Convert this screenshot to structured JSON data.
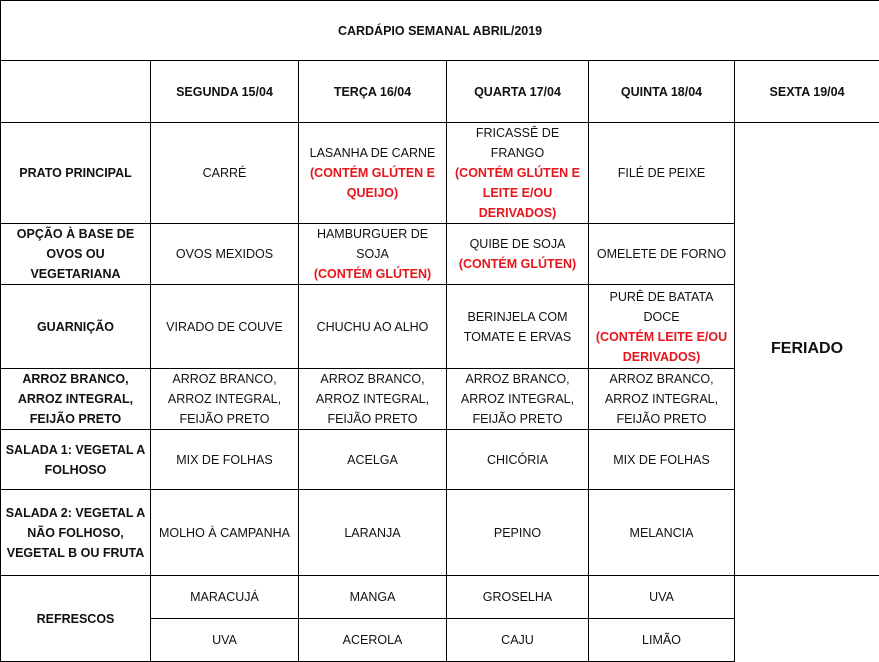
{
  "title": "CARDÁPIO SEMANAL ABRIL/2019",
  "days": [
    "SEGUNDA   15/04",
    "TERÇA 16/04",
    "QUARTA 17/04",
    "QUINTA 18/04",
    "SEXTA 19/04"
  ],
  "holiday": "FERIADO",
  "note_color": "#e8141b",
  "rows": [
    {
      "label": "PRATO PRINCIPAL",
      "cells": [
        {
          "text": "CARRÉ",
          "note": ""
        },
        {
          "text": "LASANHA DE CARNE",
          "note": "(CONTÉM GLÚTEN E QUEIJO)"
        },
        {
          "text": "FRICASSÊ DE FRANGO",
          "note": "(CONTÉM GLÚTEN E LEITE E/OU DERIVADOS)"
        },
        {
          "text": "FILÉ DE PEIXE",
          "note": ""
        }
      ]
    },
    {
      "label": "OPÇÃO À BASE DE OVOS OU VEGETARIANA",
      "cells": [
        {
          "text": "OVOS MEXIDOS",
          "note": ""
        },
        {
          "text": "HAMBURGUER DE SOJA",
          "note": "(CONTÉM GLÚTEN)"
        },
        {
          "text": "QUIBE DE SOJA",
          "note": "(CONTÉM GLÚTEN)"
        },
        {
          "text": "OMELETE DE FORNO",
          "note": ""
        }
      ]
    },
    {
      "label": "GUARNIÇÃO",
      "cells": [
        {
          "text": "VIRADO DE COUVE",
          "note": ""
        },
        {
          "text": "CHUCHU AO ALHO",
          "note": ""
        },
        {
          "text": "BERINJELA COM TOMATE E ERVAS",
          "note": ""
        },
        {
          "text": "PURÊ DE BATATA DOCE",
          "note": "(CONTÉM LEITE E/OU DERIVADOS)"
        }
      ]
    },
    {
      "label": "ARROZ BRANCO, ARROZ INTEGRAL, FEIJÃO PRETO",
      "cells": [
        {
          "text": "ARROZ BRANCO, ARROZ INTEGRAL, FEIJÃO PRETO",
          "note": ""
        },
        {
          "text": "ARROZ BRANCO, ARROZ INTEGRAL, FEIJÃO PRETO",
          "note": ""
        },
        {
          "text": "ARROZ BRANCO, ARROZ INTEGRAL, FEIJÃO PRETO",
          "note": ""
        },
        {
          "text": "ARROZ BRANCO, ARROZ INTEGRAL, FEIJÃO PRETO",
          "note": ""
        }
      ]
    },
    {
      "label": "SALADA 1: VEGETAL A FOLHOSO",
      "cells": [
        {
          "text": "MIX DE FOLHAS",
          "note": ""
        },
        {
          "text": "ACELGA",
          "note": ""
        },
        {
          "text": "CHICÓRIA",
          "note": ""
        },
        {
          "text": "MIX DE FOLHAS",
          "note": ""
        }
      ]
    },
    {
      "label": "SALADA 2: VEGETAL A NÃO FOLHOSO, VEGETAL B OU FRUTA",
      "cells": [
        {
          "text": "MOLHO À CAMPANHA",
          "note": ""
        },
        {
          "text": "LARANJA",
          "note": ""
        },
        {
          "text": "PEPINO",
          "note": ""
        },
        {
          "text": "MELANCIA",
          "note": ""
        }
      ]
    }
  ],
  "refrescos": {
    "label": "REFRESCOS",
    "row1": [
      "MARACUJÁ",
      "MANGA",
      "GROSELHA",
      "UVA"
    ],
    "row2": [
      "UVA",
      "ACEROLA",
      "CAJU",
      "LIMÃO"
    ]
  }
}
